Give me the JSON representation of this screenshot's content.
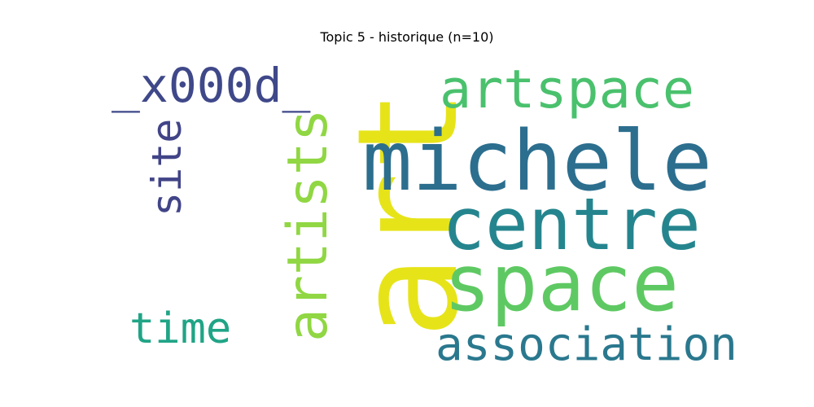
{
  "title": "Topic 5 - historique (n=10)",
  "words": [
    {
      "id": "art",
      "text": "art",
      "color": "#e6e419"
    },
    {
      "id": "michele",
      "text": "michele",
      "color": "#2c6e8e"
    },
    {
      "id": "centre",
      "text": "centre",
      "color": "#25858e"
    },
    {
      "id": "space",
      "text": "space",
      "color": "#5ec962"
    },
    {
      "id": "artspace",
      "text": "artspace",
      "color": "#4ac16d"
    },
    {
      "id": "artists",
      "text": "artists",
      "color": "#90d743"
    },
    {
      "id": "association",
      "text": "association",
      "color": "#2a788e"
    },
    {
      "id": "x000d",
      "text": "_x000d_",
      "color": "#3f4889"
    },
    {
      "id": "site",
      "text": "site",
      "color": "#414487"
    },
    {
      "id": "time",
      "text": "time",
      "color": "#20a486"
    }
  ]
}
